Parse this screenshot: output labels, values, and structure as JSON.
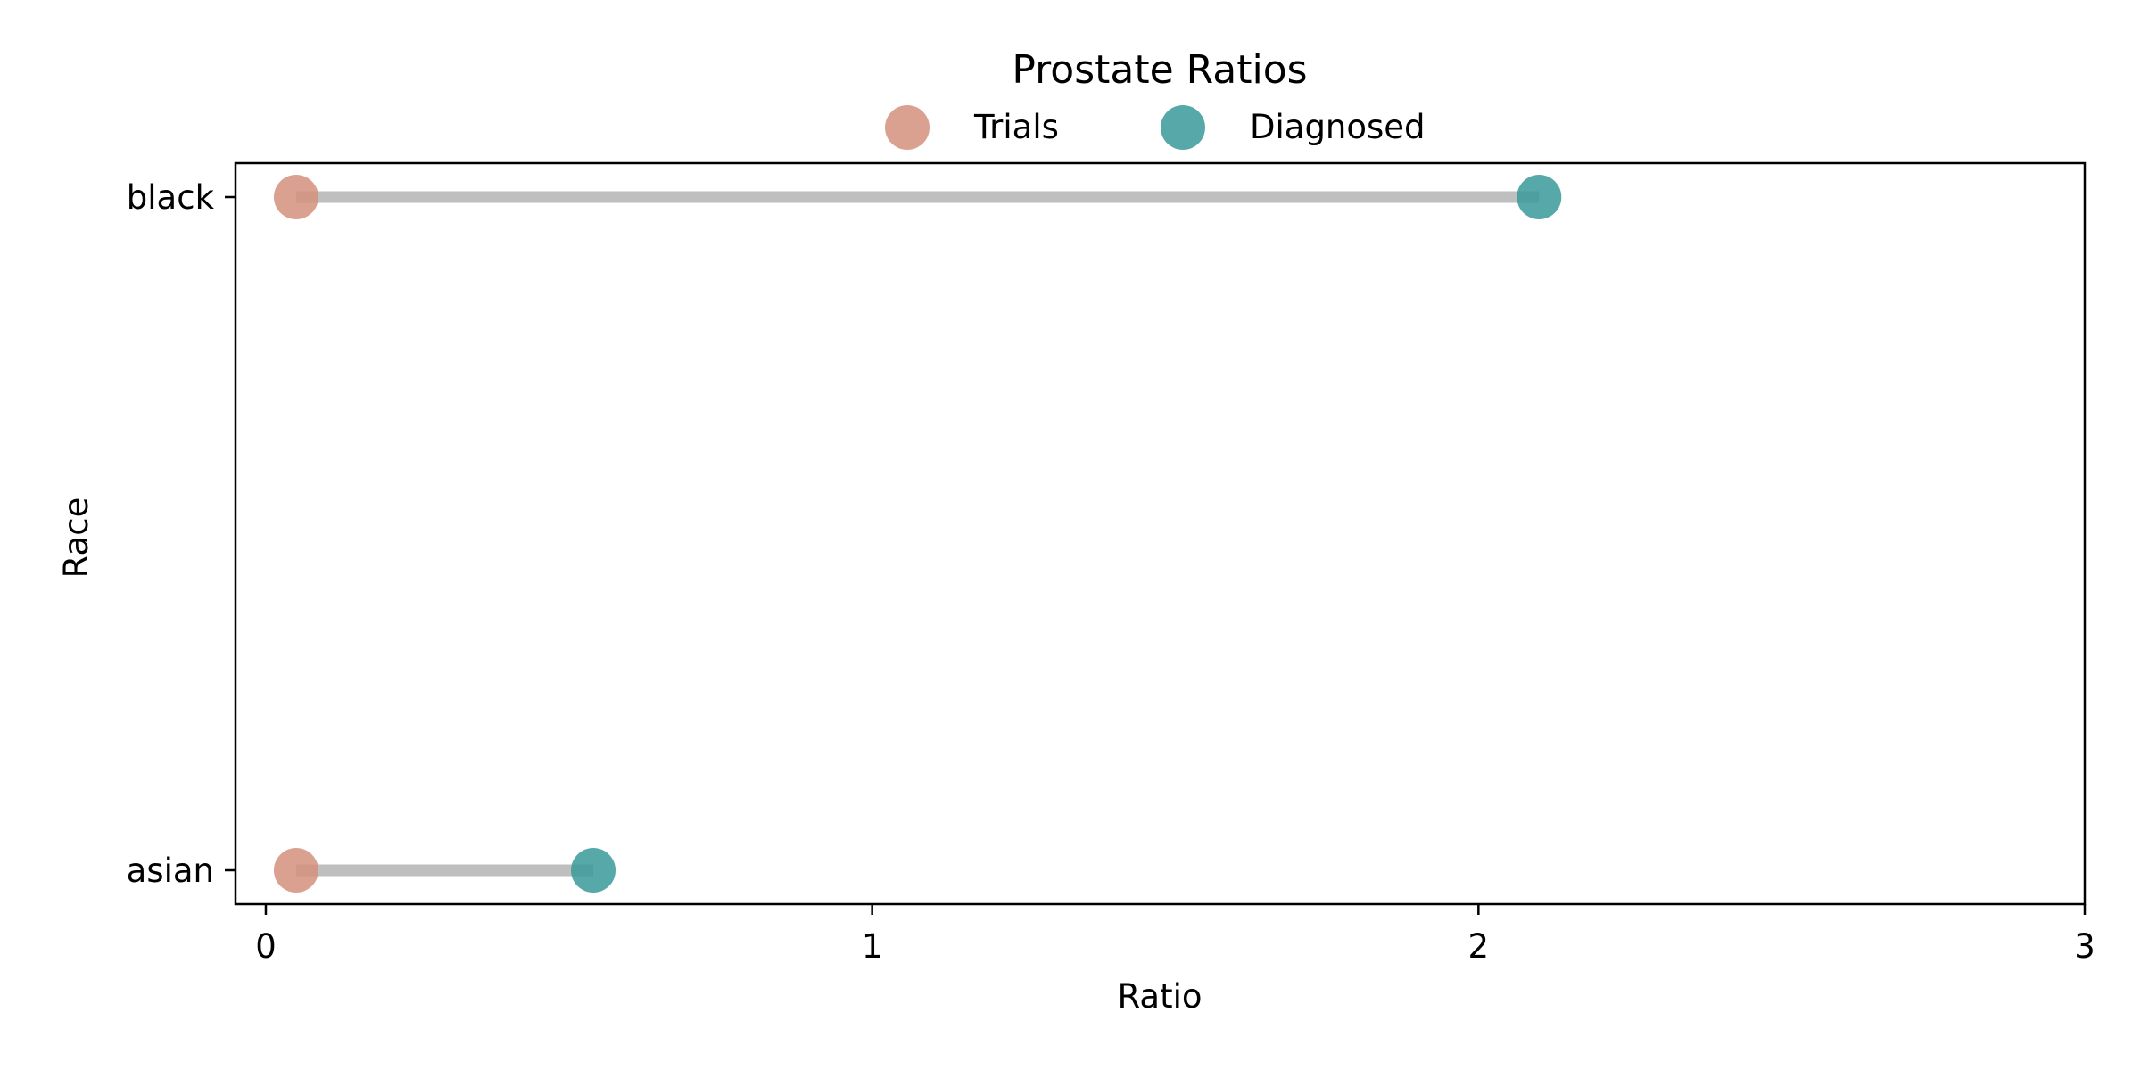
{
  "chart_data": {
    "type": "dumbbell",
    "title": "Prostate Ratios",
    "xlabel": "Ratio",
    "ylabel": "Race",
    "xlim": [
      -0.05,
      3.0
    ],
    "xticks": [
      0,
      1,
      2,
      3
    ],
    "xtick_labels": [
      "0",
      "1",
      "2",
      "3"
    ],
    "categories": [
      "black",
      "asian"
    ],
    "legend": {
      "position": "top-center",
      "ncol": 2
    },
    "grid": false,
    "series": [
      {
        "name": "Trials",
        "values": [
          0.05,
          0.05
        ],
        "color": "#D4917E"
      },
      {
        "name": "Diagnosed",
        "values": [
          2.1,
          0.54
        ],
        "color": "#3A9999"
      }
    ],
    "connector_color": "#A9A9A9"
  }
}
